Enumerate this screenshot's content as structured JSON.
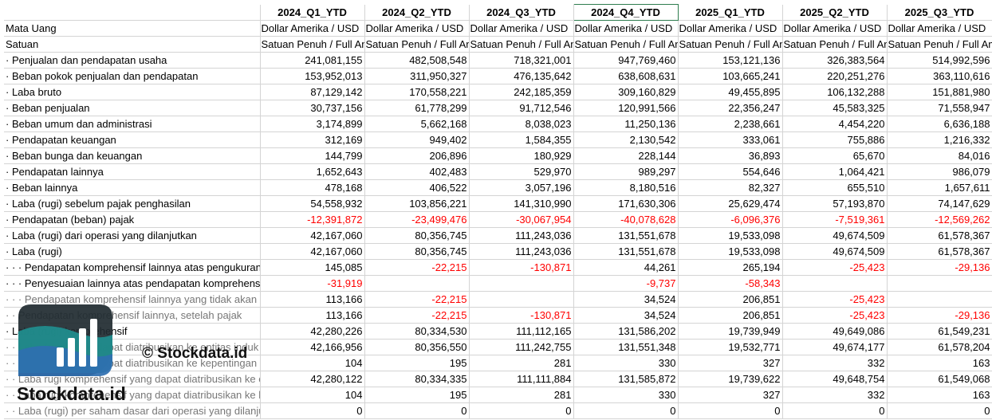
{
  "colors": {
    "negative": "#ff0000",
    "grid": "#d4d4d4",
    "selected": "#2f7d4f",
    "logo_dark": "#1f2a30",
    "logo_teal": "#1f8f8f",
    "logo_blue": "#2f6fb0"
  },
  "header": {
    "columns": [
      "",
      "2024_Q1_YTD",
      "2024_Q2_YTD",
      "2024_Q3_YTD",
      "2024_Q4_YTD",
      "2025_Q1_YTD",
      "2025_Q2_YTD",
      "2025_Q3_YTD"
    ]
  },
  "meta_rows": [
    {
      "label": "Mata Uang",
      "value": "Dollar Amerika / USD"
    },
    {
      "label": "Satuan",
      "value": "Satuan Penuh / Full Amount"
    }
  ],
  "rows": [
    {
      "label": "· Penjualan dan pendapatan usaha",
      "values": [
        "241,081,155",
        "482,508,548",
        "718,321,001",
        "947,769,460",
        "153,121,136",
        "326,383,564",
        "514,992,596"
      ]
    },
    {
      "label": "· Beban pokok penjualan dan pendapatan",
      "values": [
        "153,952,013",
        "311,950,327",
        "476,135,642",
        "638,608,631",
        "103,665,241",
        "220,251,276",
        "363,110,616"
      ]
    },
    {
      "label": "· Laba bruto",
      "values": [
        "87,129,142",
        "170,558,221",
        "242,185,359",
        "309,160,829",
        "49,455,895",
        "106,132,288",
        "151,881,980"
      ]
    },
    {
      "label": "· Beban penjualan",
      "values": [
        "30,737,156",
        "61,778,299",
        "91,712,546",
        "120,991,566",
        "22,356,247",
        "45,583,325",
        "71,558,947"
      ]
    },
    {
      "label": "· Beban umum dan administrasi",
      "values": [
        "3,174,899",
        "5,662,168",
        "8,038,023",
        "11,250,136",
        "2,238,661",
        "4,454,220",
        "6,636,188"
      ]
    },
    {
      "label": "· Pendapatan keuangan",
      "values": [
        "312,169",
        "949,402",
        "1,584,355",
        "2,130,542",
        "333,061",
        "755,886",
        "1,216,332"
      ]
    },
    {
      "label": "· Beban bunga dan keuangan",
      "values": [
        "144,799",
        "206,896",
        "180,929",
        "228,144",
        "36,893",
        "65,670",
        "84,016"
      ]
    },
    {
      "label": "· Pendapatan lainnya",
      "values": [
        "1,652,643",
        "402,483",
        "529,970",
        "989,297",
        "554,646",
        "1,064,421",
        "986,079"
      ]
    },
    {
      "label": "· Beban lainnya",
      "values": [
        "478,168",
        "406,522",
        "3,057,196",
        "8,180,516",
        "82,327",
        "655,510",
        "1,657,611"
      ]
    },
    {
      "label": "· Laba (rugi) sebelum pajak penghasilan",
      "values": [
        "54,558,932",
        "103,856,221",
        "141,310,990",
        "171,630,306",
        "25,629,474",
        "57,193,870",
        "74,147,629"
      ]
    },
    {
      "label": "· Pendapatan (beban) pajak",
      "values": [
        "-12,391,872",
        "-23,499,476",
        "-30,067,954",
        "-40,078,628",
        "-6,096,376",
        "-7,519,361",
        "-12,569,262"
      ]
    },
    {
      "label": "· Laba (rugi) dari operasi yang dilanjutkan",
      "values": [
        "42,167,060",
        "80,356,745",
        "111,243,036",
        "131,551,678",
        "19,533,098",
        "49,674,509",
        "61,578,367"
      ]
    },
    {
      "label": "· Laba (rugi)",
      "values": [
        "42,167,060",
        "80,356,745",
        "111,243,036",
        "131,551,678",
        "19,533,098",
        "49,674,509",
        "61,578,367"
      ]
    },
    {
      "label": "· · · Pendapatan komprehensif lainnya atas pengukuran kembali",
      "values": [
        "145,085",
        "-22,215",
        "-130,871",
        "44,261",
        "265,194",
        "-25,423",
        "-29,136"
      ]
    },
    {
      "label": "· · · Penyesuaian lainnya atas pendapatan komprehensif",
      "values": [
        "-31,919",
        "",
        "",
        "-9,737",
        "-58,343",
        "",
        ""
      ]
    },
    {
      "label": "· · · Pendapatan komprehensif lainnya yang tidak akan direklasifikasi",
      "values": [
        "113,166",
        "-22,215",
        "",
        "34,524",
        "206,851",
        "-25,423",
        ""
      ]
    },
    {
      "label": "· · Pendapatan komprehensif lainnya, setelah pajak",
      "values": [
        "113,166",
        "-22,215",
        "-130,871",
        "34,524",
        "206,851",
        "-25,423",
        "-29,136"
      ]
    },
    {
      "label": "· Laba (rugi) komprehensif",
      "values": [
        "42,280,226",
        "80,334,530",
        "111,112,165",
        "131,586,202",
        "19,739,949",
        "49,649,086",
        "61,549,231"
      ]
    },
    {
      "label": "· · Laba (rugi) yang dapat diatribusikan ke entitas induk",
      "values": [
        "42,166,956",
        "80,356,550",
        "111,242,755",
        "131,551,348",
        "19,532,771",
        "49,674,177",
        "61,578,204"
      ]
    },
    {
      "label": "· · Laba (rugi) yang dapat diatribusikan ke kepentingan non-pengendali",
      "values": [
        "104",
        "195",
        "281",
        "330",
        "327",
        "332",
        "163"
      ]
    },
    {
      "label": "· · Laba rugi komprehensif yang dapat diatribusikan ke entitas induk",
      "values": [
        "42,280,122",
        "80,334,335",
        "111,111,884",
        "131,585,872",
        "19,739,622",
        "49,648,754",
        "61,549,068"
      ]
    },
    {
      "label": "· · Laba rugi komprehensif yang dapat diatribusikan ke kepentingan non-pengendali",
      "values": [
        "104",
        "195",
        "281",
        "330",
        "327",
        "332",
        "163"
      ]
    },
    {
      "label": "· · Laba (rugi) per saham dasar dari operasi yang dilanjutkan",
      "values": [
        "0",
        "0",
        "0",
        "0",
        "0",
        "0",
        "0"
      ]
    }
  ],
  "watermark": {
    "copyright": "© Stockdata.id",
    "brand": "Stockdata.id",
    "icon": "bar-chart-logo-icon"
  }
}
